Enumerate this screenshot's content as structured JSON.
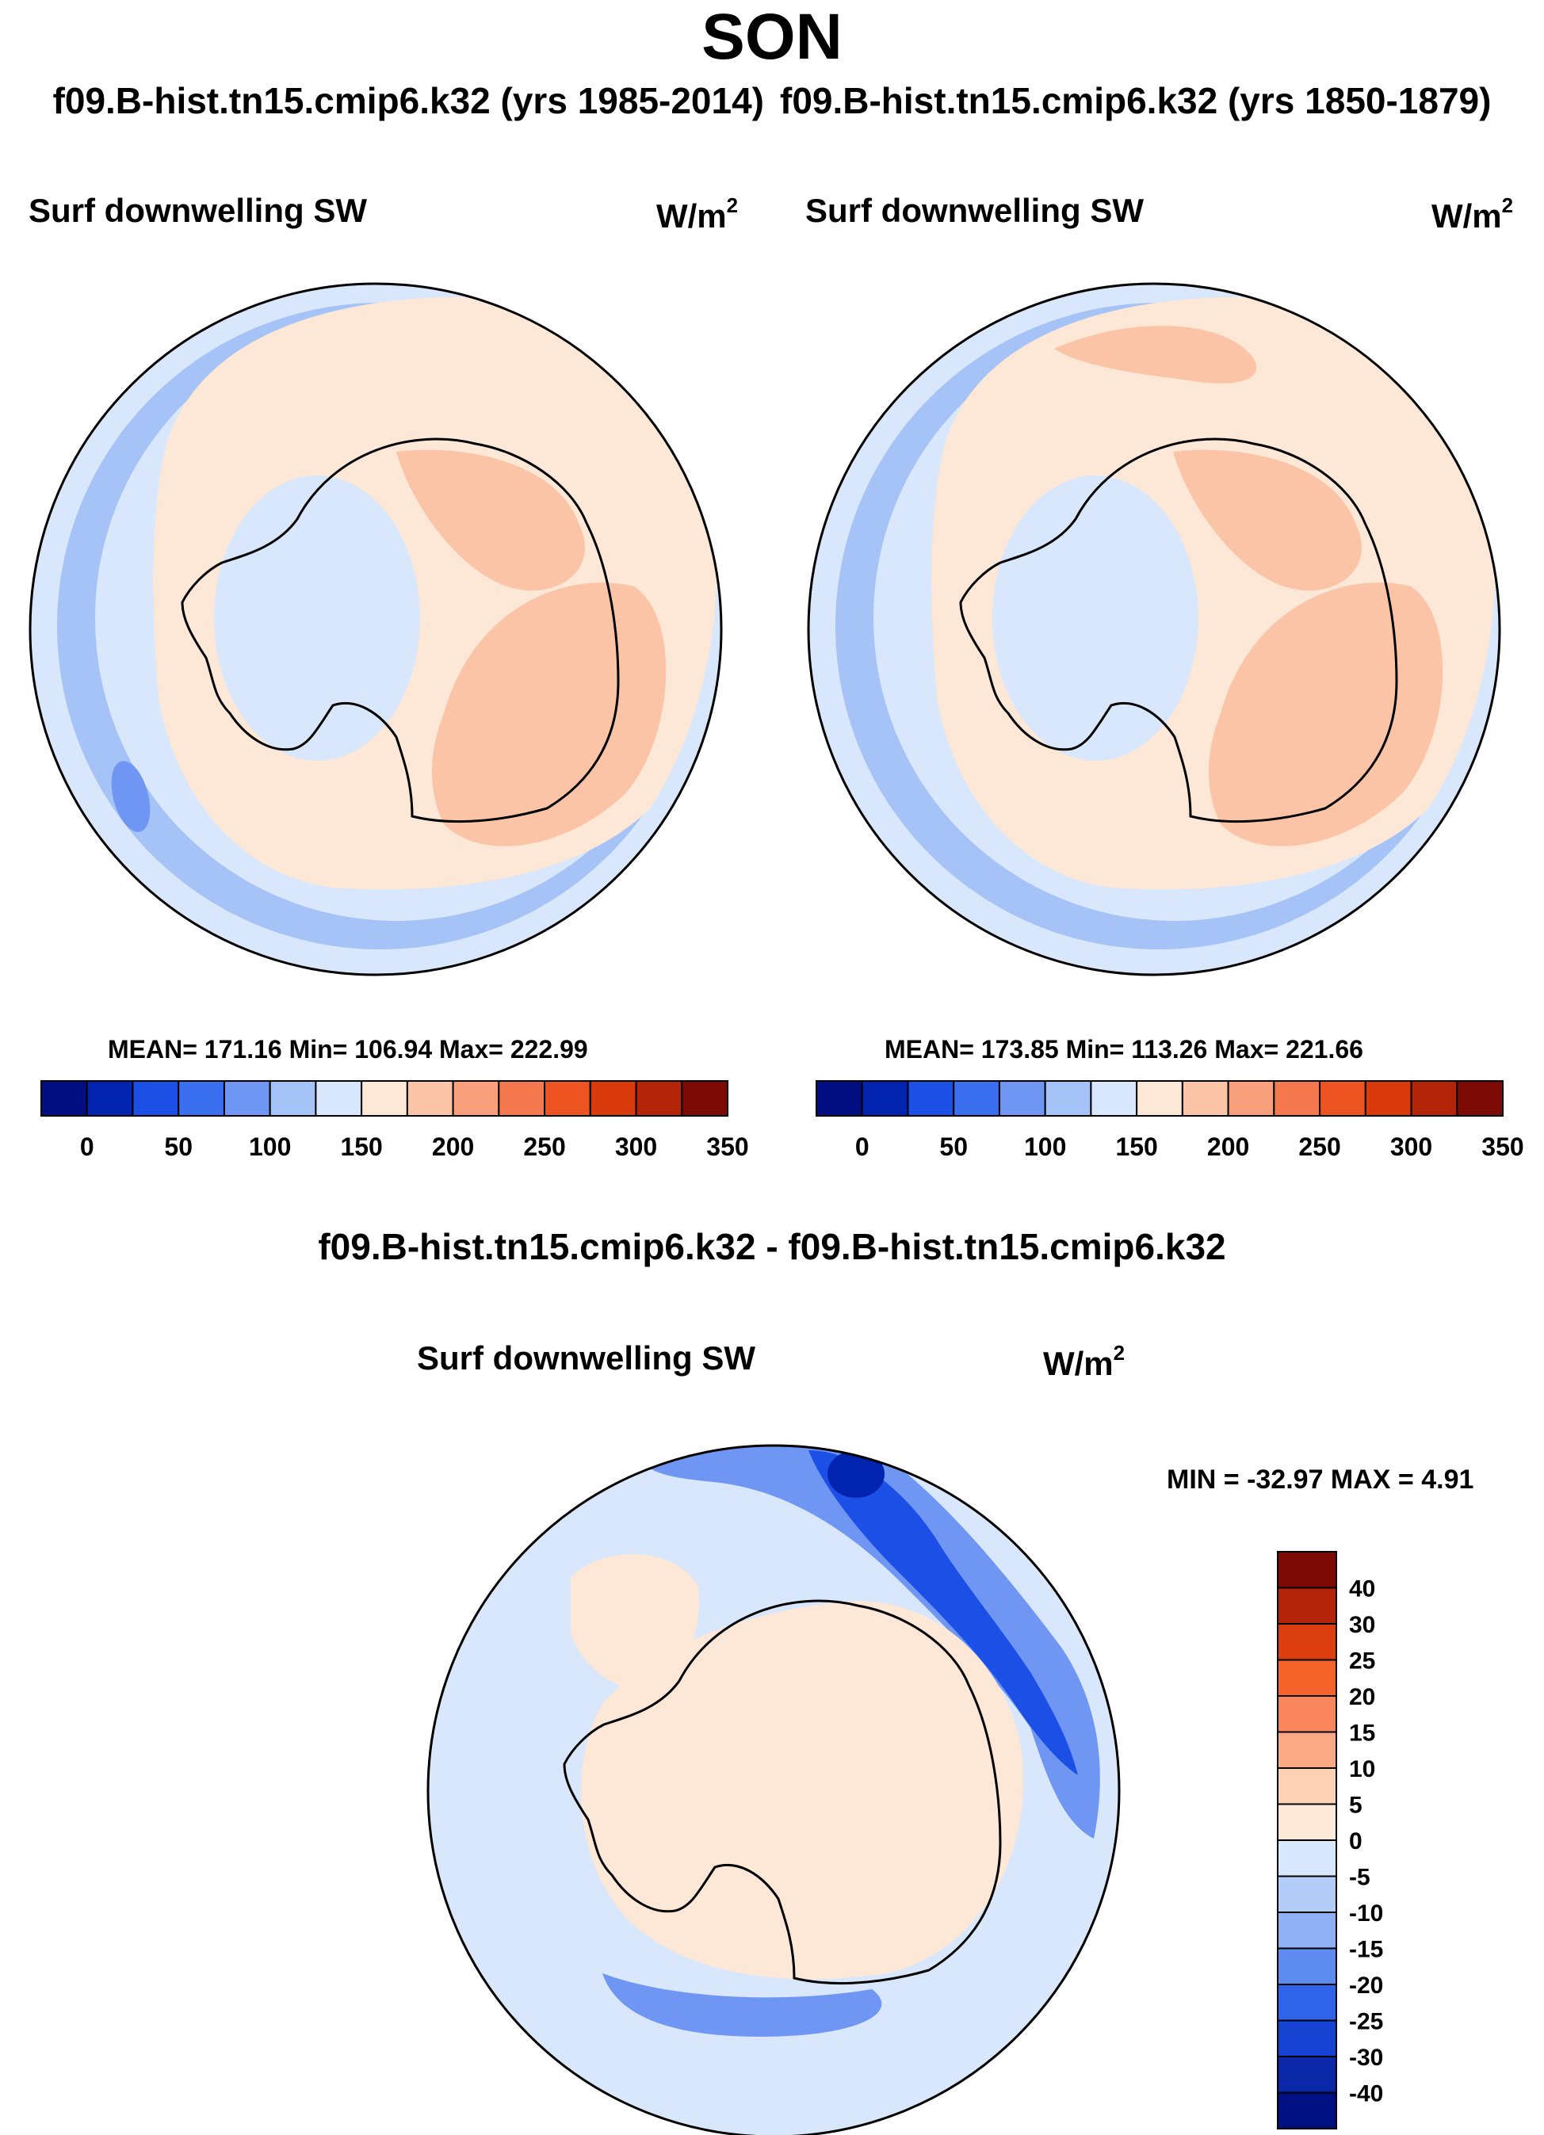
{
  "season": "SON",
  "case_titles": {
    "left": "f09.B-hist.tn15.cmip6.k32 (yrs 1985-2014)",
    "right": "f09.B-hist.tn15.cmip6.k32 (yrs 1850-1879)"
  },
  "panels": [
    {
      "variable": "Surf downwelling SW",
      "units": "W/m",
      "units_exp": "2",
      "stats": "MEAN= 171.16  Min= 106.94  Max= 222.99"
    },
    {
      "variable": "Surf downwelling SW",
      "units": "W/m",
      "units_exp": "2",
      "stats": "MEAN= 173.85  Min= 113.26  Max= 221.66"
    }
  ],
  "abs_colorbar": {
    "colors": [
      "#000e82",
      "#0024b0",
      "#1c4fe6",
      "#3a6ff0",
      "#6e96f2",
      "#a6c3f7",
      "#d8e7fb",
      "#fde7d6",
      "#fcc4a7",
      "#f8a07c",
      "#f5794e",
      "#ee5322",
      "#d93a0c",
      "#b42408",
      "#7e0a05"
    ],
    "tick_labels": [
      "0",
      "50",
      "100",
      "150",
      "200",
      "250",
      "300",
      "350"
    ]
  },
  "diff": {
    "title": "f09.B-hist.tn15.cmip6.k32 - f09.B-hist.tn15.cmip6.k32",
    "variable": "Surf downwelling SW",
    "units": "W/m",
    "units_exp": "2",
    "minmax": "MIN = -32.97 MAX =   4.91",
    "colorbar": {
      "colors_top_to_bottom": [
        "#7e0a05",
        "#b42408",
        "#dd3e0f",
        "#f5622a",
        "#f8855b",
        "#fba985",
        "#fdd1b4",
        "#fde9d8",
        "#d8e7fb",
        "#b3cdf8",
        "#8fb0f5",
        "#5f8cf0",
        "#2f63ea",
        "#1642d2",
        "#0a27a8",
        "#001080"
      ],
      "labels": [
        "40",
        "30",
        "25",
        "20",
        "15",
        "10",
        "5",
        "0",
        "-5",
        "-10",
        "-15",
        "-20",
        "-25",
        "-30",
        "-40"
      ]
    }
  },
  "map_colors": {
    "ocean_blue": "#a6c3f7",
    "ocean_outer": "#d8e7fb",
    "light_peach": "#fde7d6",
    "peach": "#fcc4a7",
    "blue_mid": "#6e96f2",
    "blue_dark": "#1c4fe6",
    "blue_deep": "#0024b0"
  }
}
